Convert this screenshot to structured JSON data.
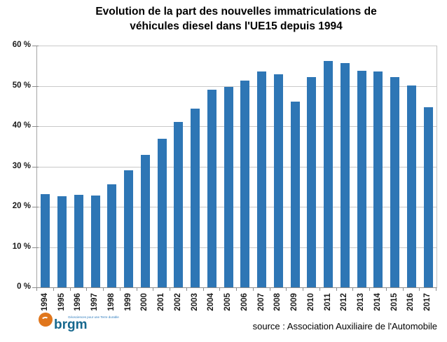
{
  "title": {
    "line1": "Evolution de la part des nouvelles immatriculations de",
    "line2": "véhicules diesel dans l'UE15 depuis 1994"
  },
  "source_label": "source : Association Auxiliaire de l'Automobile",
  "logo": {
    "wordmark": "brgm",
    "tagline": "Géosciences pour une Terre durable",
    "circle_color": "#E0761C",
    "wordmark_color": "#17688E",
    "tagline_color": "#2F7CBE"
  },
  "colors": {
    "bar": "#2E76B5",
    "gridline": "#C9C9C9",
    "axis": "#A6A6A6",
    "tick": "#8C8C8C",
    "label": "#1A1A1A"
  },
  "chart_data": {
    "type": "bar",
    "title": "Evolution de la part des nouvelles immatriculations de véhicules diesel dans l'UE15 depuis 1994",
    "categories": [
      "1994",
      "1995",
      "1996",
      "1997",
      "1998",
      "1999",
      "2000",
      "2001",
      "2002",
      "2003",
      "2004",
      "2005",
      "2006",
      "2007",
      "2008",
      "2009",
      "2010",
      "2011",
      "2012",
      "2013",
      "2014",
      "2015",
      "2016",
      "2017"
    ],
    "values": [
      23.1,
      22.6,
      23.0,
      22.8,
      25.5,
      29.1,
      32.9,
      36.8,
      41.0,
      44.3,
      49.0,
      49.8,
      51.3,
      53.5,
      52.9,
      46.1,
      52.1,
      56.1,
      55.7,
      53.8,
      53.6,
      52.2,
      50.1,
      44.7
    ],
    "xlabel": "",
    "ylabel": "",
    "y_ticks": [
      "0 %",
      "10 %",
      "20 %",
      "30 %",
      "40 %",
      "50 %",
      "60 %"
    ],
    "ylim": [
      0,
      60
    ],
    "y_tick_step": 10,
    "grid": true,
    "legend": false,
    "bar_color": "#2E76B5",
    "source": "source : Association Auxiliaire de l'Automobile"
  }
}
